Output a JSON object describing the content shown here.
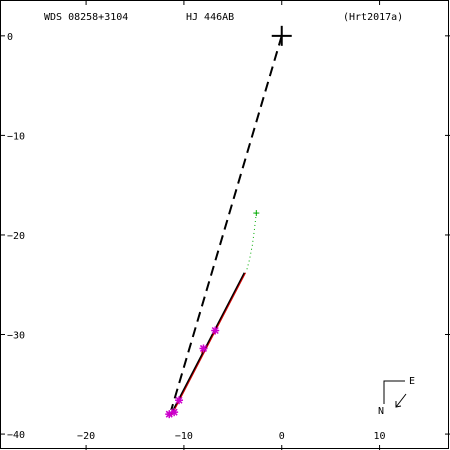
{
  "header": {
    "wds": "WDS 08258+3104",
    "discoverer": "HJ  446AB",
    "reference": "(Hrt2017a)"
  },
  "compass": {
    "north": "N",
    "east": "E"
  },
  "chart_data": {
    "type": "scatter",
    "title": "",
    "xlabel": "",
    "ylabel": "",
    "x_ticks": [
      -20,
      -10,
      0,
      10
    ],
    "y_ticks": [
      0,
      -10,
      -20,
      -30,
      -40
    ],
    "x_tick_labels": [
      "−20",
      "−10",
      "0",
      "10"
    ],
    "y_tick_labels": [
      "0",
      "−10",
      "−20",
      "−30",
      "−40"
    ],
    "xlim": [
      -28.8,
      17.2
    ],
    "ylim": [
      -41.6,
      3.6
    ],
    "primary": {
      "x": 0,
      "y": 0,
      "color": "#000000"
    },
    "companion_dashed_line": {
      "from": [
        0,
        0
      ],
      "to": [
        -11.3,
        -37.6
      ],
      "color": "#000000"
    },
    "orbit_segment": {
      "from": [
        -11.4,
        -38.2
      ],
      "to": [
        -3.8,
        -23.8
      ],
      "color": "#000000",
      "overlay_color": "#cc0000"
    },
    "green_path": {
      "color": "#00aa00",
      "points": [
        [
          -2.6,
          -17.8
        ],
        [
          -2.8,
          -19.5
        ],
        [
          -3.0,
          -21.0
        ],
        [
          -3.3,
          -22.5
        ],
        [
          -3.6,
          -23.6
        ]
      ]
    },
    "green_marker": {
      "x": -2.6,
      "y": -17.8
    },
    "observations": {
      "color": "#cc00cc",
      "points": [
        [
          -11.5,
          -38.0
        ],
        [
          -11.0,
          -37.8
        ],
        [
          -10.5,
          -36.6
        ],
        [
          -8.0,
          -31.4
        ],
        [
          -6.8,
          -29.6
        ]
      ]
    },
    "residuals": [
      [
        [
          -11.5,
          -38.0
        ],
        [
          -11.2,
          -37.9
        ]
      ],
      [
        [
          -8.0,
          -31.4
        ],
        [
          -8.2,
          -31.9
        ]
      ],
      [
        [
          -6.8,
          -29.6
        ],
        [
          -7.0,
          -30.0
        ]
      ]
    ]
  }
}
